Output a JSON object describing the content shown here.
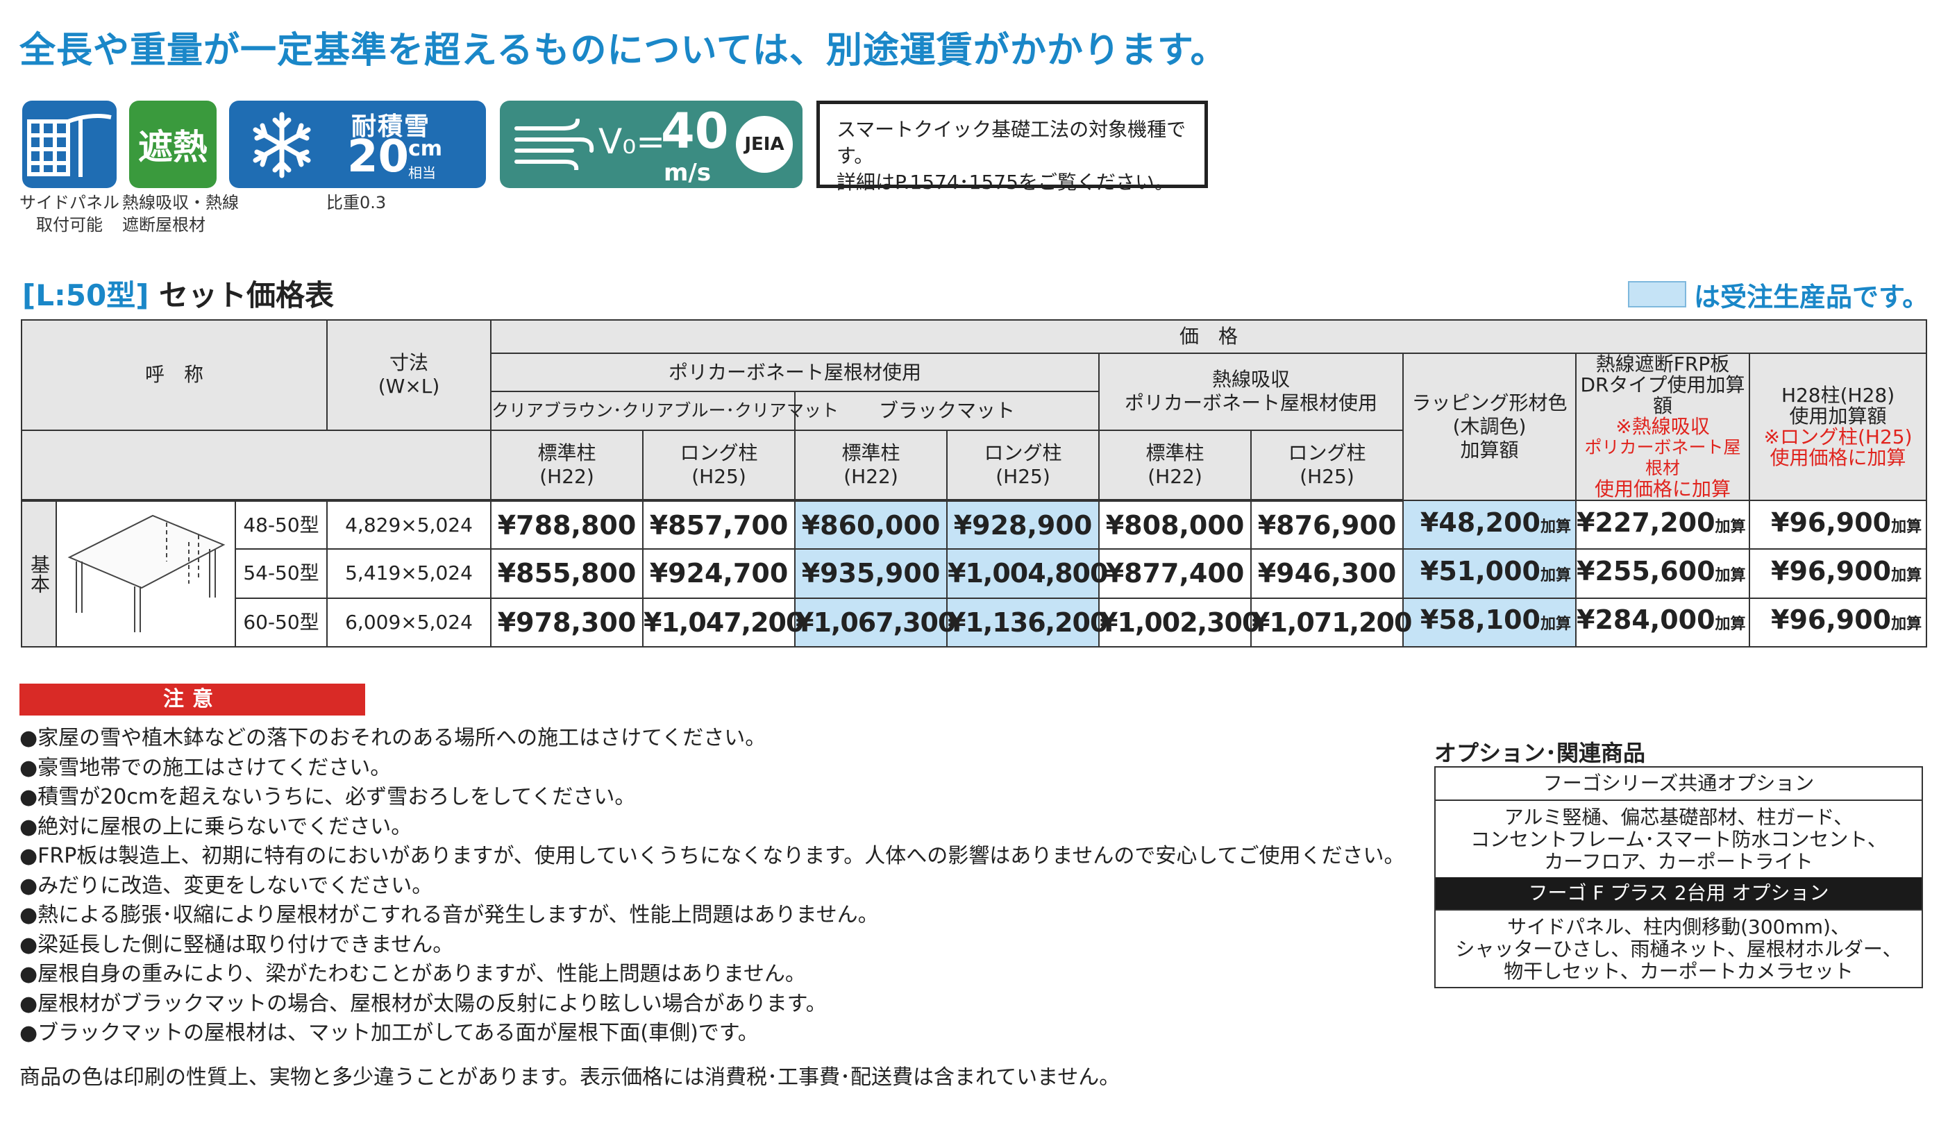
{
  "headline": "全長や重量が一定基準を超えるものについては、別途運賃がかかります。",
  "badges": {
    "side_panel": {
      "caption_line1": "サイドパネル",
      "caption_line2": "取付可能",
      "icon": "side-panel-icon"
    },
    "heat": {
      "label": "遮熱",
      "caption_line1": "熱線吸収・熱線",
      "caption_line2": "遮断屋根材"
    },
    "snow": {
      "label": "耐積雪",
      "value": "20",
      "unit": "cm",
      "unit_sub": "相当",
      "caption": "比重0.3",
      "icon": "snowflake-icon"
    },
    "wind": {
      "symbol": "V₀=",
      "value": "40",
      "unit": "m/s",
      "mark": "JEIA",
      "icon": "wind-icon"
    },
    "note": {
      "line1": "スマートクイック基礎工法の対象機種です。",
      "line2": "詳細はP.1574･1575をご覧ください。"
    }
  },
  "section": {
    "bracket": "[L:50型]",
    "title": "セット価格表",
    "legend_text": "は受注生産品です。",
    "legend_color": "#c5e3f6"
  },
  "table": {
    "h_name": "呼　称",
    "h_size_1": "寸法",
    "h_size_2": "(W×L)",
    "h_price": "価　格",
    "h_poly": "ポリカーボネート屋根材使用",
    "h_clear": "クリアブラウン･クリアブルー･クリアマット",
    "h_black": "ブラックマット",
    "h_heat_1": "熱線吸収",
    "h_heat_2": "ポリカーボネート屋根材使用",
    "h_wrap_1": "ラッピング形材色",
    "h_wrap_2": "(木調色)",
    "h_wrap_3": "加算額",
    "h_frp_1": "熱線遮断FRP板",
    "h_frp_2": "DRタイプ使用加算額",
    "h_frp_3": "※熱線吸収",
    "h_frp_4": "ポリカーボネート屋根材",
    "h_frp_5": "使用価格に加算",
    "h_h28_1": "H28柱(H28)",
    "h_h28_2": "使用加算額",
    "h_h28_3": "※ロング柱(H25)",
    "h_h28_4": "使用価格に加算",
    "std_1": "標準柱",
    "std_2": "(H22)",
    "long_1": "ロング柱",
    "long_2": "(H25)",
    "kihon": "基本",
    "add_suffix": "加算",
    "rows": [
      {
        "model": "48-50型",
        "size": "4,829×5,024",
        "clear_std": "¥788,800",
        "clear_long": "¥857,700",
        "black_std": "¥860,000",
        "black_long": "¥928,900",
        "heat_std": "¥808,000",
        "heat_long": "¥876,900",
        "wrap": "¥48,200",
        "frp": "¥227,200",
        "h28": "¥96,900"
      },
      {
        "model": "54-50型",
        "size": "5,419×5,024",
        "clear_std": "¥855,800",
        "clear_long": "¥924,700",
        "black_std": "¥935,900",
        "black_long": "¥1,004,800",
        "heat_std": "¥877,400",
        "heat_long": "¥946,300",
        "wrap": "¥51,000",
        "frp": "¥255,600",
        "h28": "¥96,900"
      },
      {
        "model": "60-50型",
        "size": "6,009×5,024",
        "clear_std": "¥978,300",
        "clear_long": "¥1,047,200",
        "black_std": "¥1,067,300",
        "black_long": "¥1,136,200",
        "heat_std": "¥1,002,300",
        "heat_long": "¥1,071,200",
        "wrap": "¥58,100",
        "frp": "¥284,000",
        "h28": "¥96,900"
      }
    ]
  },
  "caution": {
    "title": "注意",
    "items": [
      "●家屋の雪や植木鉢などの落下のおそれのある場所への施工はさけてください。",
      "●豪雪地帯での施工はさけてください。",
      "●積雪が20cmを超えないうちに、必ず雪おろしをしてください。",
      "●絶対に屋根の上に乗らないでください。",
      "●FRP板は製造上、初期に特有のにおいがありますが、使用していくうちになくなります。人体への影響はありませんので安心してご使用ください。",
      "●みだりに改造、変更をしないでください。",
      "●熱による膨張･収縮により屋根材がこすれる音が発生しますが、性能上問題はありません。",
      "●梁延長した側に竪樋は取り付けできません。",
      "●屋根自身の重みにより、梁がたわむことがありますが、性能上問題はありません。",
      "●屋根材がブラックマットの場合、屋根材が太陽の反射により眩しい場合があります。",
      "●ブラックマットの屋根材は、マット加工がしてある面が屋根下面(車側)です。"
    ],
    "footer": "商品の色は印刷の性質上、実物と多少違うことがあります。表示価格には消費税･工事費･配送費は含まれていません。"
  },
  "options": {
    "title": "オプション･関連商品",
    "common_head": "フーゴシリーズ共通オプション",
    "common_1": "アルミ竪樋、偏芯基礎部材、柱ガード、",
    "common_2": "コンセントフレーム･スマート防水コンセント、",
    "common_3": "カーフロア、カーポートライト",
    "plus_head": "フーゴ F プラス 2台用 オプション",
    "plus_1": "サイドパネル、柱内側移動(300mm)、",
    "plus_2": "シャッターひさし、雨樋ネット、屋根材ホルダー、",
    "plus_3": "物干しセット、カーポートカメラセット"
  }
}
